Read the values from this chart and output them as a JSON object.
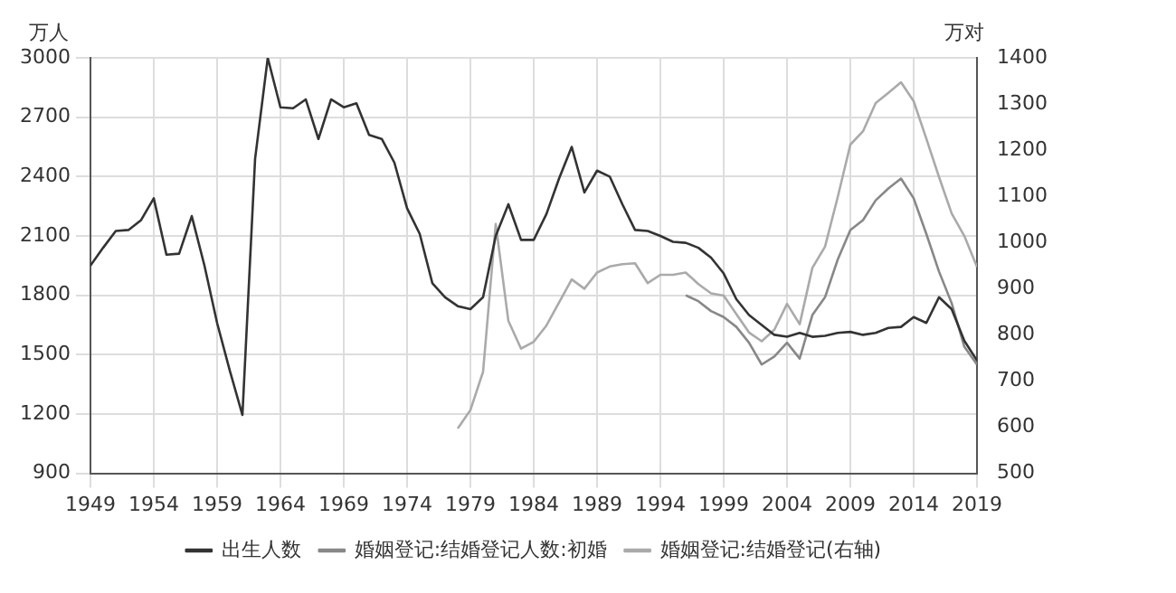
{
  "chart_data": {
    "type": "line",
    "ylabel": "万人",
    "y2label": "万对",
    "xlim": [
      1949,
      2019
    ],
    "xticks": [
      1949,
      1954,
      1959,
      1964,
      1969,
      1974,
      1979,
      1984,
      1989,
      1994,
      1999,
      2004,
      2009,
      2014,
      2019
    ],
    "ylim": [
      900,
      3000
    ],
    "yticks": [
      900,
      1200,
      1500,
      1800,
      2100,
      2400,
      2700,
      3000
    ],
    "y2lim": [
      500,
      1400
    ],
    "y2ticks": [
      500,
      600,
      700,
      800,
      900,
      1000,
      1100,
      1200,
      1300,
      1400
    ],
    "grid": true,
    "legend": "bottom",
    "marker": "none",
    "line_style": "solid",
    "series": [
      {
        "name": "出生人数",
        "color": "#333333",
        "x": [
          1949,
          1950,
          1951,
          1952,
          1953,
          1954,
          1955,
          1956,
          1957,
          1958,
          1959,
          1960,
          1961,
          1962,
          1963,
          1964,
          1965,
          1966,
          1967,
          1968,
          1969,
          1970,
          1971,
          1972,
          1973,
          1974,
          1975,
          1976,
          1977,
          1978,
          1979,
          1980,
          1981,
          1982,
          1983,
          1984,
          1985,
          1986,
          1987,
          1988,
          1989,
          1990,
          1991,
          1992,
          1993,
          1994,
          1995,
          1996,
          1997,
          1998,
          1999,
          2000,
          2001,
          2002,
          2003,
          2004,
          2005,
          2006,
          2007,
          2008,
          2009,
          2010,
          2011,
          2012,
          2013,
          2014,
          2015,
          2016,
          2017,
          2018,
          2019
        ],
        "values": [
          1950,
          2040,
          2125,
          2130,
          2180,
          2290,
          2005,
          2010,
          2200,
          1950,
          1660,
          1420,
          1195,
          2490,
          3000,
          2750,
          2745,
          2790,
          2590,
          2790,
          2750,
          2770,
          2610,
          2590,
          2470,
          2240,
          2110,
          1860,
          1790,
          1745,
          1730,
          1790,
          2100,
          2260,
          2080,
          2080,
          2210,
          2390,
          2550,
          2320,
          2430,
          2400,
          2260,
          2130,
          2125,
          2100,
          2070,
          2065,
          2040,
          1990,
          1910,
          1780,
          1700,
          1650,
          1600,
          1590,
          1610,
          1590,
          1595,
          1610,
          1615,
          1600,
          1610,
          1635,
          1640,
          1690,
          1660,
          1790,
          1730,
          1570,
          1470
        ]
      },
      {
        "name": "婚姻登记:结婚登记人数:初婚",
        "color": "#888888",
        "x": [
          1996,
          1997,
          1998,
          1999,
          2000,
          2001,
          2002,
          2003,
          2004,
          2005,
          2006,
          2007,
          2008,
          2009,
          2010,
          2011,
          2012,
          2013,
          2014,
          2015,
          2016,
          2017,
          2018,
          2019
        ],
        "values": [
          1800,
          1770,
          1720,
          1690,
          1640,
          1560,
          1450,
          1490,
          1560,
          1480,
          1700,
          1790,
          1980,
          2130,
          2180,
          2280,
          2340,
          2390,
          2290,
          2110,
          1920,
          1760,
          1540,
          1450
        ]
      },
      {
        "name": "婚姻登记:结婚登记(右轴)",
        "color": "#aaaaaa",
        "axis": "y2",
        "x": [
          1978,
          1979,
          1980,
          1981,
          1982,
          1983,
          1984,
          1985,
          1986,
          1987,
          1988,
          1989,
          1990,
          1991,
          1992,
          1993,
          1994,
          1995,
          1996,
          1997,
          1998,
          1999,
          2000,
          2001,
          2002,
          2003,
          2004,
          2005,
          2006,
          2007,
          2008,
          2009,
          2010,
          2011,
          2012,
          2013,
          2014,
          2015,
          2016,
          2017,
          2018,
          2019
        ],
        "values": [
          597,
          637,
          720,
          1040,
          830,
          770,
          785,
          820,
          870,
          920,
          900,
          935,
          948,
          953,
          955,
          912,
          930,
          930,
          935,
          910,
          890,
          885,
          845,
          805,
          786,
          811,
          867,
          823,
          945,
          991,
          1098,
          1212,
          1241,
          1302,
          1324,
          1347,
          1306,
          1225,
          1142,
          1063,
          1014,
          947
        ]
      }
    ]
  }
}
